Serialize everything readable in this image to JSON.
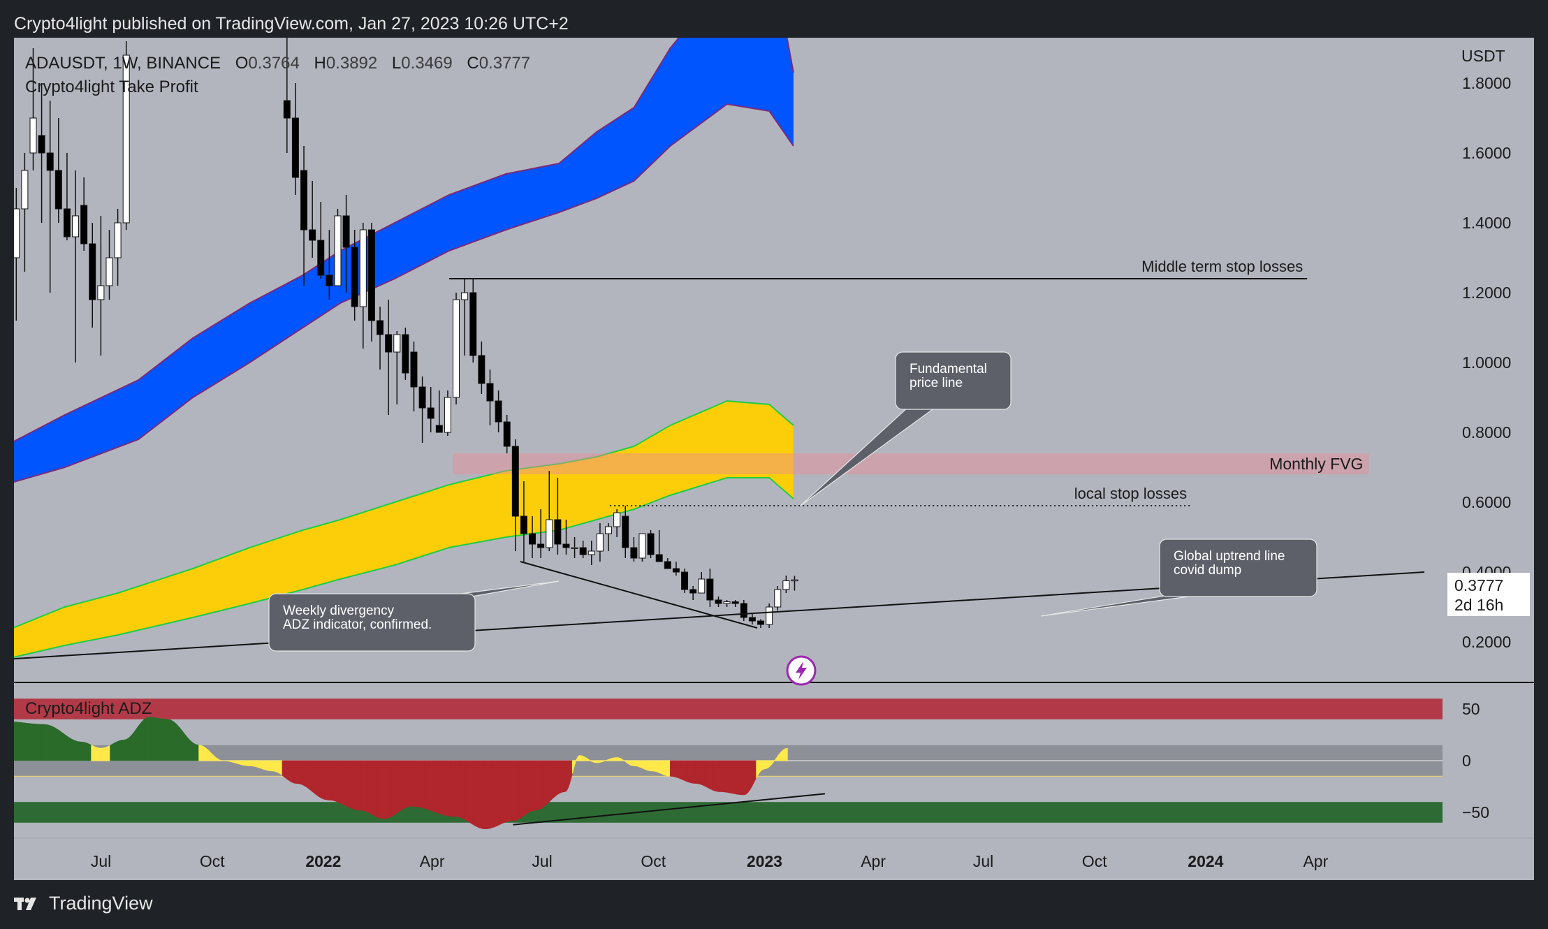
{
  "header": {
    "published_line": "Crypto4light published on TradingView.com, Jan 27, 2023 10:26 UTC+2"
  },
  "footer": {
    "brand": "TradingView"
  },
  "colors": {
    "background": "#b2b5be",
    "candle_up": "#ffffff",
    "candle_down": "#000000",
    "blue_band": "#0055ff",
    "blue_band_edge": "#7a2a7a",
    "yellow_band": "#fcce0a",
    "yellow_band_edge": "#22cc44",
    "fvg_zone": "rgba(235,140,150,0.45)",
    "adz_red": "#b23a48",
    "adz_green": "#2e6b34",
    "adz_green_wave": "#2a6b2a",
    "adz_red_wave": "#b0262c",
    "adz_yellow": "#ffe94a",
    "callout_bg": "#5d6069"
  },
  "chart_data": [
    {
      "type": "candlestick",
      "symbol_line": {
        "symbol": "ADAUSDT, 1W, BINANCE",
        "o_label": "O",
        "o_value": "0.3764",
        "h_label": "H",
        "h_value": "0.3892",
        "l_label": "L",
        "l_value": "0.3469",
        "c_label": "C",
        "c_value": "0.3777"
      },
      "indicator_name": "Crypto4light Take Profit",
      "currency": "USDT",
      "y_ticks": [
        "1.8000",
        "1.6000",
        "1.4000",
        "1.2000",
        "1.0000",
        "0.8000",
        "0.6000",
        "0.4000",
        "0.2000"
      ],
      "ylim": [
        0.09,
        1.93
      ],
      "x_ticks": [
        "Jul",
        "Oct",
        "2022",
        "Apr",
        "Jul",
        "Oct",
        "2023",
        "Apr",
        "Jul",
        "Oct",
        "2024",
        "Apr"
      ],
      "x_tick_bold": [
        false,
        false,
        true,
        false,
        false,
        false,
        true,
        false,
        false,
        false,
        true,
        false
      ],
      "x_tick_dates": [
        "2021-07-01",
        "2021-10-01",
        "2022-01-01",
        "2022-04-01",
        "2022-07-01",
        "2022-10-01",
        "2023-01-01",
        "2023-04-01",
        "2023-07-01",
        "2023-10-01",
        "2024-01-01",
        "2024-04-01"
      ],
      "x_range": [
        "2021-04-20",
        "2024-07-15"
      ],
      "last_price": "0.3777",
      "countdown": "2d 16h",
      "candles": [
        {
          "date": "2021-04-19",
          "o": 1.3,
          "h": 1.5,
          "l": 1.12,
          "c": 1.44
        },
        {
          "date": "2021-04-26",
          "o": 1.44,
          "h": 1.6,
          "l": 1.26,
          "c": 1.55
        },
        {
          "date": "2021-05-03",
          "o": 1.6,
          "h": 1.9,
          "l": 1.55,
          "c": 1.7
        },
        {
          "date": "2021-05-10",
          "o": 1.65,
          "h": 1.8,
          "l": 1.4,
          "c": 1.6
        },
        {
          "date": "2021-05-17",
          "o": 1.6,
          "h": 1.75,
          "l": 1.2,
          "c": 1.55
        },
        {
          "date": "2021-05-24",
          "o": 1.55,
          "h": 1.7,
          "l": 1.4,
          "c": 1.44
        },
        {
          "date": "2021-05-31",
          "o": 1.44,
          "h": 1.6,
          "l": 1.35,
          "c": 1.36
        },
        {
          "date": "2021-06-07",
          "o": 1.36,
          "h": 1.55,
          "l": 1.0,
          "c": 1.42
        },
        {
          "date": "2021-06-14",
          "o": 1.45,
          "h": 1.53,
          "l": 1.32,
          "c": 1.34
        },
        {
          "date": "2021-06-21",
          "o": 1.34,
          "h": 1.4,
          "l": 1.1,
          "c": 1.18
        },
        {
          "date": "2021-06-28",
          "o": 1.18,
          "h": 1.42,
          "l": 1.02,
          "c": 1.22
        },
        {
          "date": "2021-07-05",
          "o": 1.22,
          "h": 1.38,
          "l": 1.18,
          "c": 1.3
        },
        {
          "date": "2021-07-12",
          "o": 1.3,
          "h": 1.44,
          "l": 1.22,
          "c": 1.4
        },
        {
          "date": "2021-07-19",
          "o": 1.4,
          "h": 1.92,
          "l": 1.38,
          "c": 1.88
        }
      ],
      "candles_2": [
        {
          "date": "2021-11-29",
          "o": 1.75,
          "h": 1.95,
          "l": 1.6,
          "c": 1.7
        },
        {
          "date": "2021-12-06",
          "o": 1.7,
          "h": 1.8,
          "l": 1.48,
          "c": 1.53
        },
        {
          "date": "2021-12-13",
          "o": 1.55,
          "h": 1.62,
          "l": 1.22,
          "c": 1.38
        },
        {
          "date": "2021-12-20",
          "o": 1.38,
          "h": 1.52,
          "l": 1.3,
          "c": 1.35
        },
        {
          "date": "2021-12-27",
          "o": 1.35,
          "h": 1.46,
          "l": 1.24,
          "c": 1.25
        },
        {
          "date": "2022-01-03",
          "o": 1.25,
          "h": 1.38,
          "l": 1.18,
          "c": 1.22
        },
        {
          "date": "2022-01-10",
          "o": 1.22,
          "h": 1.44,
          "l": 1.22,
          "c": 1.42
        },
        {
          "date": "2022-01-17",
          "o": 1.42,
          "h": 1.48,
          "l": 1.2,
          "c": 1.33
        },
        {
          "date": "2022-01-24",
          "o": 1.33,
          "h": 1.38,
          "l": 1.12,
          "c": 1.16
        },
        {
          "date": "2022-01-31",
          "o": 1.16,
          "h": 1.4,
          "l": 1.04,
          "c": 1.38
        },
        {
          "date": "2022-02-07",
          "o": 1.38,
          "h": 1.4,
          "l": 1.06,
          "c": 1.12
        },
        {
          "date": "2022-02-14",
          "o": 1.12,
          "h": 1.16,
          "l": 0.98,
          "c": 1.08
        },
        {
          "date": "2022-02-21",
          "o": 1.08,
          "h": 1.18,
          "l": 0.85,
          "c": 1.03
        },
        {
          "date": "2022-02-28",
          "o": 1.03,
          "h": 1.09,
          "l": 0.88,
          "c": 1.08
        },
        {
          "date": "2022-03-07",
          "o": 1.08,
          "h": 1.1,
          "l": 0.95,
          "c": 0.97
        },
        {
          "date": "2022-03-14",
          "o": 1.03,
          "h": 1.06,
          "l": 0.86,
          "c": 0.93
        },
        {
          "date": "2022-03-21",
          "o": 0.93,
          "h": 0.96,
          "l": 0.77,
          "c": 0.87
        },
        {
          "date": "2022-03-28",
          "o": 0.87,
          "h": 0.93,
          "l": 0.8,
          "c": 0.84
        },
        {
          "date": "2022-04-04",
          "o": 0.82,
          "h": 0.92,
          "l": 0.8,
          "c": 0.8
        },
        {
          "date": "2022-04-11",
          "o": 0.8,
          "h": 0.92,
          "l": 0.79,
          "c": 0.9
        },
        {
          "date": "2022-04-18",
          "o": 0.9,
          "h": 1.2,
          "l": 0.88,
          "c": 1.18
        },
        {
          "date": "2022-04-25",
          "o": 1.18,
          "h": 1.24,
          "l": 1.02,
          "c": 1.2
        },
        {
          "date": "2022-05-02",
          "o": 1.2,
          "h": 1.24,
          "l": 1.0,
          "c": 1.02
        },
        {
          "date": "2022-05-09",
          "o": 1.02,
          "h": 1.06,
          "l": 0.91,
          "c": 0.94
        },
        {
          "date": "2022-05-16",
          "o": 0.94,
          "h": 0.98,
          "l": 0.82,
          "c": 0.89
        },
        {
          "date": "2022-05-23",
          "o": 0.89,
          "h": 0.92,
          "l": 0.8,
          "c": 0.83
        },
        {
          "date": "2022-05-30",
          "o": 0.83,
          "h": 0.85,
          "l": 0.74,
          "c": 0.76
        },
        {
          "date": "2022-06-06",
          "o": 0.76,
          "h": 0.78,
          "l": 0.46,
          "c": 0.56
        },
        {
          "date": "2022-06-13",
          "o": 0.56,
          "h": 0.66,
          "l": 0.43,
          "c": 0.51
        },
        {
          "date": "2022-06-20",
          "o": 0.51,
          "h": 0.56,
          "l": 0.44,
          "c": 0.48
        },
        {
          "date": "2022-06-27",
          "o": 0.48,
          "h": 0.58,
          "l": 0.44,
          "c": 0.47
        },
        {
          "date": "2022-07-04",
          "o": 0.47,
          "h": 0.69,
          "l": 0.46,
          "c": 0.55
        },
        {
          "date": "2022-07-11",
          "o": 0.55,
          "h": 0.67,
          "l": 0.45,
          "c": 0.48
        },
        {
          "date": "2022-07-18",
          "o": 0.48,
          "h": 0.55,
          "l": 0.45,
          "c": 0.47
        },
        {
          "date": "2022-07-25",
          "o": 0.47,
          "h": 0.5,
          "l": 0.44,
          "c": 0.47
        },
        {
          "date": "2022-08-01",
          "o": 0.47,
          "h": 0.49,
          "l": 0.44,
          "c": 0.45
        },
        {
          "date": "2022-08-08",
          "o": 0.45,
          "h": 0.49,
          "l": 0.42,
          "c": 0.46
        },
        {
          "date": "2022-08-15",
          "o": 0.46,
          "h": 0.54,
          "l": 0.43,
          "c": 0.51
        },
        {
          "date": "2022-08-22",
          "o": 0.51,
          "h": 0.54,
          "l": 0.46,
          "c": 0.53
        },
        {
          "date": "2022-08-29",
          "o": 0.53,
          "h": 0.58,
          "l": 0.5,
          "c": 0.57
        },
        {
          "date": "2022-09-05",
          "o": 0.56,
          "h": 0.59,
          "l": 0.44,
          "c": 0.47
        },
        {
          "date": "2022-09-12",
          "o": 0.47,
          "h": 0.5,
          "l": 0.43,
          "c": 0.44
        },
        {
          "date": "2022-09-19",
          "o": 0.44,
          "h": 0.51,
          "l": 0.43,
          "c": 0.51
        },
        {
          "date": "2022-09-26",
          "o": 0.51,
          "h": 0.52,
          "l": 0.44,
          "c": 0.45
        },
        {
          "date": "2022-10-03",
          "o": 0.45,
          "h": 0.52,
          "l": 0.43,
          "c": 0.43
        },
        {
          "date": "2022-10-10",
          "o": 0.43,
          "h": 0.44,
          "l": 0.41,
          "c": 0.41
        },
        {
          "date": "2022-10-17",
          "o": 0.41,
          "h": 0.43,
          "l": 0.39,
          "c": 0.4
        },
        {
          "date": "2022-10-24",
          "o": 0.4,
          "h": 0.41,
          "l": 0.34,
          "c": 0.35
        },
        {
          "date": "2022-10-31",
          "o": 0.35,
          "h": 0.36,
          "l": 0.32,
          "c": 0.34
        },
        {
          "date": "2022-11-07",
          "o": 0.34,
          "h": 0.4,
          "l": 0.34,
          "c": 0.38
        },
        {
          "date": "2022-11-14",
          "o": 0.38,
          "h": 0.41,
          "l": 0.3,
          "c": 0.32
        },
        {
          "date": "2022-11-21",
          "o": 0.32,
          "h": 0.33,
          "l": 0.3,
          "c": 0.31
        },
        {
          "date": "2022-11-28",
          "o": 0.31,
          "h": 0.32,
          "l": 0.3,
          "c": 0.315
        },
        {
          "date": "2022-12-05",
          "o": 0.315,
          "h": 0.32,
          "l": 0.3,
          "c": 0.31
        },
        {
          "date": "2022-12-12",
          "o": 0.31,
          "h": 0.32,
          "l": 0.26,
          "c": 0.27
        },
        {
          "date": "2022-12-19",
          "o": 0.27,
          "h": 0.28,
          "l": 0.25,
          "c": 0.26
        },
        {
          "date": "2022-12-26",
          "o": 0.26,
          "h": 0.265,
          "l": 0.24,
          "c": 0.25
        },
        {
          "date": "2023-01-02",
          "o": 0.25,
          "h": 0.31,
          "l": 0.24,
          "c": 0.3
        },
        {
          "date": "2023-01-09",
          "o": 0.3,
          "h": 0.36,
          "l": 0.29,
          "c": 0.35
        },
        {
          "date": "2023-01-16",
          "o": 0.35,
          "h": 0.39,
          "l": 0.34,
          "c": 0.375
        },
        {
          "date": "2023-01-23",
          "o": 0.3764,
          "h": 0.3892,
          "l": 0.3469,
          "c": 0.3777
        }
      ],
      "blue_band": {
        "dates": [
          "2021-04-12",
          "2021-06-01",
          "2021-08-01",
          "2021-09-15",
          "2021-11-01",
          "2021-12-15",
          "2022-01-15",
          "2022-03-01",
          "2022-04-15",
          "2022-06-01",
          "2022-07-15",
          "2022-08-15",
          "2022-09-15",
          "2022-10-15",
          "2022-12-01",
          "2023-01-05",
          "2023-01-25"
        ],
        "upper": [
          0.76,
          0.85,
          0.95,
          1.07,
          1.17,
          1.25,
          1.32,
          1.4,
          1.48,
          1.54,
          1.57,
          1.66,
          1.73,
          1.9,
          2.1,
          2.2,
          1.83
        ],
        "lower": [
          0.65,
          0.7,
          0.78,
          0.9,
          1.0,
          1.1,
          1.17,
          1.24,
          1.32,
          1.38,
          1.43,
          1.47,
          1.52,
          1.62,
          1.74,
          1.72,
          1.62
        ]
      },
      "yellow_band": {
        "dates": [
          "2021-04-12",
          "2021-06-01",
          "2021-07-15",
          "2021-09-15",
          "2021-11-01",
          "2021-12-15",
          "2022-01-15",
          "2022-03-01",
          "2022-04-15",
          "2022-06-01",
          "2022-07-15",
          "2022-08-15",
          "2022-09-15",
          "2022-10-15",
          "2022-12-01",
          "2023-01-05",
          "2023-01-25"
        ],
        "upper": [
          0.23,
          0.3,
          0.34,
          0.41,
          0.47,
          0.52,
          0.55,
          0.6,
          0.65,
          0.69,
          0.71,
          0.73,
          0.76,
          0.82,
          0.89,
          0.88,
          0.82
        ],
        "lower": [
          0.15,
          0.19,
          0.22,
          0.27,
          0.31,
          0.35,
          0.38,
          0.42,
          0.47,
          0.5,
          0.52,
          0.55,
          0.58,
          0.62,
          0.67,
          0.67,
          0.61
        ]
      },
      "levels": [
        {
          "label": "Middle term stop losses",
          "value": 1.24,
          "from": "2022-04-18",
          "to": "2024-03-25",
          "style": "solid"
        },
        {
          "label": "local stop losses",
          "value": 0.59,
          "from": "2022-08-29",
          "to": "2023-12-20",
          "style": "dotted"
        }
      ],
      "zones": [
        {
          "label": "Monthly FVG",
          "from_date": "2022-04-18",
          "to_date": "2024-05-15",
          "low": 0.68,
          "high": 0.74
        }
      ],
      "trendlines": [
        {
          "name": "global-uptrend",
          "points": [
            [
              "2021-04-12",
              0.15
            ],
            [
              "2024-06-30",
              0.4
            ]
          ]
        },
        {
          "name": "divergence-price",
          "points": [
            [
              "2022-06-13",
              0.43
            ],
            [
              "2022-12-26",
              0.24
            ]
          ]
        }
      ],
      "callouts": [
        {
          "lines": [
            "Fundamental",
            "price line"
          ]
        },
        {
          "lines": [
            "Global uptrend line",
            "covid dump"
          ]
        },
        {
          "lines": [
            "Weekly divergency",
            "ADZ indicator, confirmed."
          ]
        }
      ]
    },
    {
      "type": "area",
      "name": "Crypto4light ADZ",
      "y_ticks": [
        "50",
        "0",
        "−50"
      ],
      "ylim": [
        -75,
        75
      ],
      "bands": [
        {
          "name": "upper",
          "low": 40,
          "high": 60
        },
        {
          "name": "middle",
          "low": -15,
          "high": 15
        },
        {
          "name": "lower",
          "low": -60,
          "high": -40
        }
      ],
      "oscillator": {
        "dates": [
          "2021-04-12",
          "2021-05-15",
          "2021-06-15",
          "2021-07-01",
          "2021-07-20",
          "2021-08-10",
          "2021-08-25",
          "2021-09-20",
          "2021-10-10",
          "2021-11-01",
          "2021-11-20",
          "2021-12-10",
          "2022-01-05",
          "2022-02-01",
          "2022-02-20",
          "2022-03-15",
          "2022-04-20",
          "2022-05-15",
          "2022-06-07",
          "2022-06-25",
          "2022-07-20",
          "2022-08-01",
          "2022-08-15",
          "2022-09-01",
          "2022-09-15",
          "2022-09-30",
          "2022-10-15",
          "2022-11-05",
          "2022-11-25",
          "2022-12-15",
          "2023-01-01",
          "2023-01-20"
        ],
        "values": [
          38,
          35,
          18,
          12,
          20,
          42,
          40,
          15,
          0,
          -5,
          -10,
          -22,
          -38,
          -48,
          -56,
          -44,
          -54,
          -66,
          -58,
          -48,
          -30,
          5,
          -2,
          3,
          -5,
          -10,
          -15,
          -22,
          -30,
          -33,
          -8,
          12
        ]
      },
      "divergence_line": {
        "points": [
          [
            "2022-06-07",
            -62
          ],
          [
            "2023-02-20",
            -32
          ]
        ]
      }
    }
  ]
}
